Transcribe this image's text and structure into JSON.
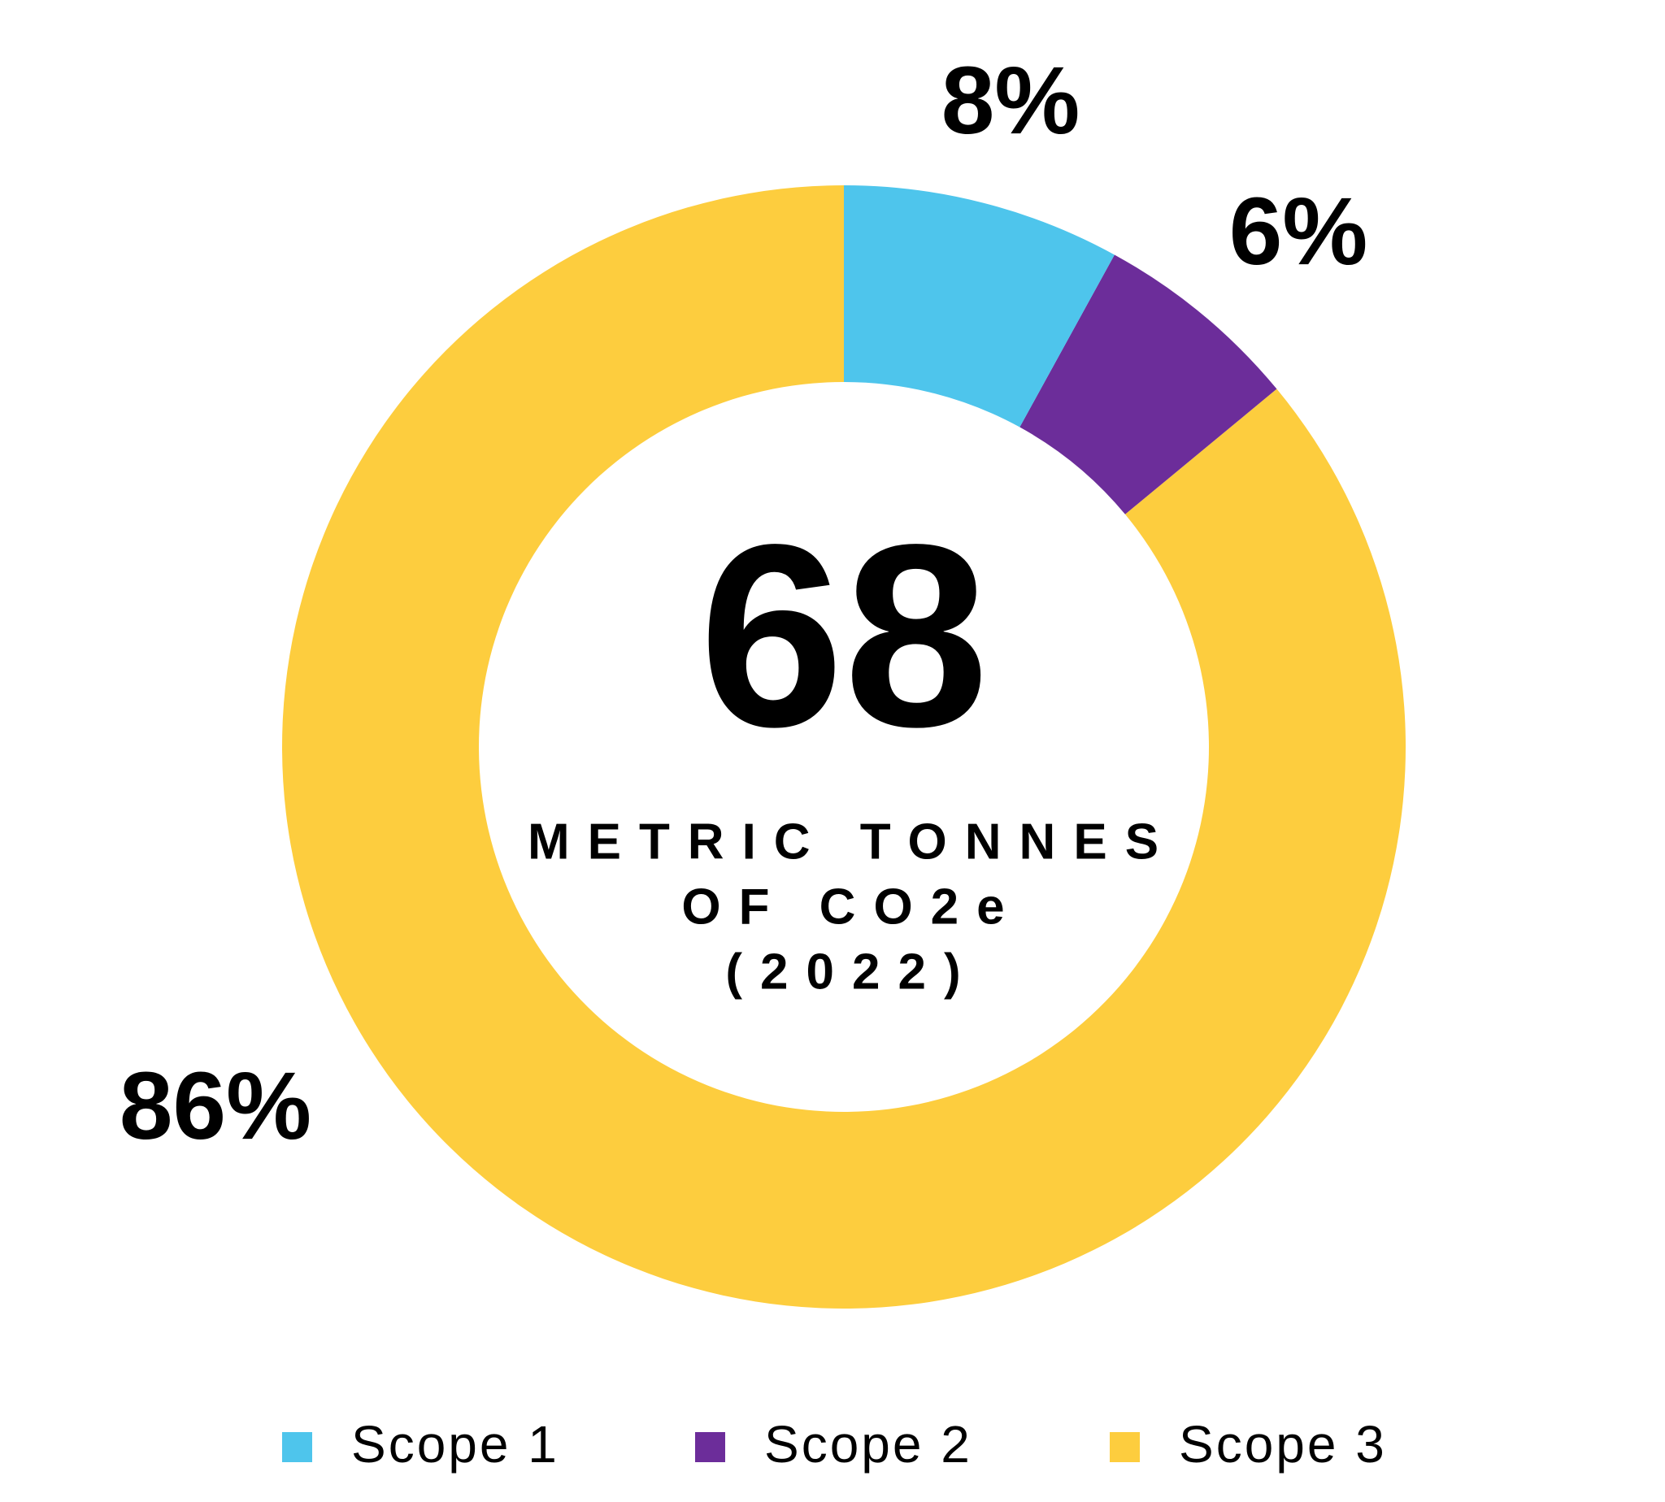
{
  "chart_data": {
    "type": "donut",
    "categories": [
      "Scope 1",
      "Scope 2",
      "Scope 3"
    ],
    "values": [
      8,
      6,
      86
    ],
    "value_labels": [
      "8%",
      "6%",
      "86%"
    ],
    "colors": [
      "#4ec5ec",
      "#6c2d9a",
      "#fdcd3e"
    ],
    "center_value": "68",
    "center_label": [
      "METRIC TONNES",
      "OF CO2e",
      "(2022)"
    ],
    "legend": "bottom"
  }
}
